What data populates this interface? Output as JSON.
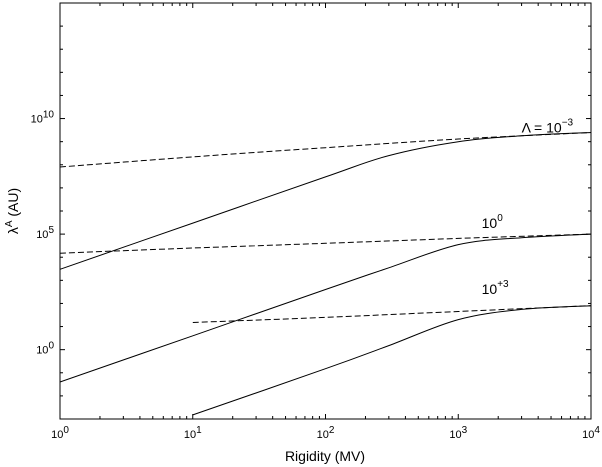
{
  "chart_data": {
    "type": "line",
    "xscale": "log",
    "yscale": "log",
    "xlim": [
      1,
      10000
    ],
    "ylim": [
      0.001,
      1000000000000000.0
    ],
    "grid": false,
    "xlabel": "Rigidity (MV)",
    "ylabel_main": "λ",
    "ylabel_sup": "A",
    "ylabel_unit": " (AU)",
    "x_ticks": [
      {
        "value": 1,
        "base": "10",
        "exp": "0"
      },
      {
        "value": 10,
        "base": "10",
        "exp": "1"
      },
      {
        "value": 100,
        "base": "10",
        "exp": "2"
      },
      {
        "value": 1000,
        "base": "10",
        "exp": "3"
      },
      {
        "value": 10000,
        "base": "10",
        "exp": "4"
      }
    ],
    "y_ticks": [
      {
        "value": 1,
        "base": "10",
        "exp": "0"
      },
      {
        "value": 100000,
        "base": "10",
        "exp": "5"
      },
      {
        "value": 10000000000,
        "base": "10",
        "exp": "10"
      }
    ],
    "curve_labels": [
      {
        "main": "Λ = 10",
        "sup": "−3",
        "at_x": 3000,
        "at_y": 2500000000.0
      },
      {
        "main": "10",
        "sup": "0",
        "at_x": 1500,
        "at_y": 180000.0
      },
      {
        "main": "10",
        "sup": "+3",
        "at_x": 1500,
        "at_y": 250
      }
    ],
    "series": [
      {
        "style": "solid",
        "x": [
          1,
          10,
          100,
          300,
          1000,
          3000,
          10000
        ],
        "y": [
          3000,
          300000.0,
          30000000.0,
          250000000.0,
          1000000000.0,
          1800000000.0,
          2500000000.0
        ]
      },
      {
        "style": "dashed",
        "x": [
          1,
          10,
          100,
          1000,
          10000
        ],
        "y": [
          80000000.0,
          220000000.0,
          550000000.0,
          1300000000.0,
          2500000000.0
        ]
      },
      {
        "style": "solid",
        "x": [
          1,
          10,
          100,
          300,
          1000,
          3000,
          10000
        ],
        "y": [
          0.04,
          4,
          400,
          3500,
          35000.0,
          70000.0,
          100000.0
        ]
      },
      {
        "style": "dashed",
        "x": [
          1,
          10,
          100,
          1000,
          10000
        ],
        "y": [
          15000.0,
          25000.0,
          40000.0,
          65000.0,
          100000.0
        ]
      },
      {
        "style": "solid",
        "x": [
          10,
          100,
          300,
          1000,
          3000,
          10000
        ],
        "y": [
          0.0015,
          0.15,
          1.5,
          20,
          55,
          80
        ]
      },
      {
        "style": "dashed",
        "x": [
          10,
          100,
          1000,
          10000
        ],
        "y": [
          15,
          25,
          45,
          80
        ]
      }
    ]
  }
}
